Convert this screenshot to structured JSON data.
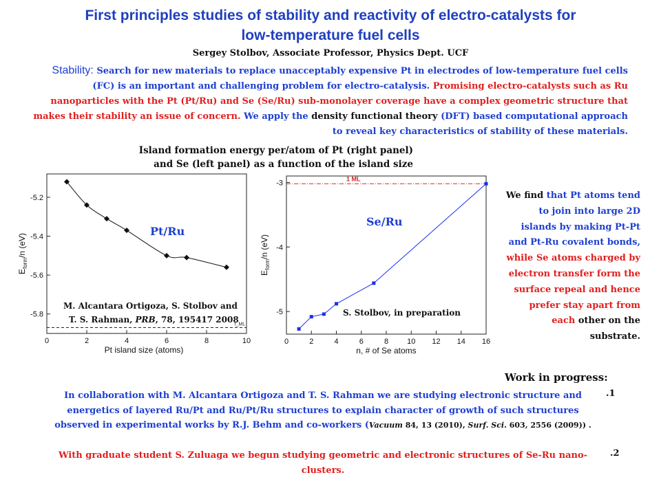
{
  "title": {
    "line1": "First principles studies of stability and reactivity of electro-catalysts for",
    "line2": "low-temperature fuel cells"
  },
  "author": "Sergey Stolbov, Associate Professor, Physics Dept. UCF",
  "stability": {
    "label": "Stability:",
    "part1": "Search for new materials to replace unacceptably expensive Pt in electrodes of low-temperature fuel cells (FC) is an important and challenging problem for electro-catalysis.",
    "part2": "Promising electro-catalysts such as Ru nanoparticles with the Pt (Pt/Ru) and Se (Se/Ru) sub-monolayer coverage have a complex geometric structure that makes their stability an issue of concern.",
    "part3a": "We apply the",
    "part3b": "density functional theory",
    "part3c": "(DFT) based computational approach to reveal key characteristics of stability of these materials."
  },
  "figure_caption": {
    "line1": "Island formation energy per/atom of Pt (right panel)",
    "line2": "and Se (left panel) as a function of the island size"
  },
  "findings": {
    "p1": "We find",
    "p2": "that Pt atoms tend to join into large 2D islands by making Pt-Pt and Pt-Ru covalent bonds,",
    "p3": "while Se atoms charged by electron transfer form the surface repeal and hence prefer stay apart from each",
    "p4": "other on the substrate."
  },
  "work_in_progress": {
    "heading": "Work in progress:",
    "item1_number": ".1",
    "item1_text": "In collaboration with M. Alcantara Ortigoza and T. S. Rahman we are studying electronic structure and energetics of layered Ru/Pt and Ru/Pt/Ru structures to explain character of growth of such structures  observed in experimental works by R.J. Behm and co-workers (",
    "item1_ref_a": "Vacuum",
    "item1_ref_b": " 84, 13 (2010), ",
    "item1_ref_c": "Surf. Sci.",
    "item1_ref_d": " 603, 2556 (2009))",
    "item1_end": " .",
    "item2_number": ".2",
    "item2_text": "With graduate student S. Zuluaga we begun studying geometric and electronic structures of Se-Ru nano-clusters."
  },
  "colors": {
    "title_blue": "#1f3fbf",
    "text_blue": "#1d3fd0",
    "text_red": "#e0201e",
    "series_blue": "#1a2ff0",
    "ml_line_red": "#e02020"
  },
  "chart_data": [
    {
      "type": "line",
      "panel_label": "Pt/Ru",
      "xlabel": "Pt island size (atoms)",
      "ylabel": "E_form/n (eV)",
      "ylabel_main": "E",
      "ylabel_sub": "form",
      "ylabel_rest": "/n (eV)",
      "xlim": [
        0,
        10
      ],
      "ylim": [
        -5.9,
        -5.08
      ],
      "xticks": [
        0,
        2,
        4,
        6,
        8,
        10
      ],
      "yticks": [
        -5.2,
        -5.4,
        -5.6,
        -5.8
      ],
      "x": [
        1,
        2,
        3,
        4,
        6,
        7,
        9
      ],
      "y": [
        -5.12,
        -5.24,
        -5.31,
        -5.37,
        -5.5,
        -5.51,
        -5.56
      ],
      "reference_label": "f_ML",
      "reference_value": -5.87,
      "citation_line1": "M. Alcantara Ortigoza, S. Stolbov and",
      "citation_line2_a": "T. S. Rahman,",
      "citation_line2_b": "PRB",
      "citation_line2_c": ", 78, 195417 2008"
    },
    {
      "type": "line",
      "panel_label": "Se/Ru",
      "xlabel": "n, # of Se atoms",
      "ylabel": "E_form/n (eV)",
      "ylabel_main": "E",
      "ylabel_sub": "form",
      "ylabel_rest": "/n (eV)",
      "xlim": [
        0,
        16
      ],
      "ylim": [
        -5.35,
        -2.9
      ],
      "xticks": [
        0,
        2,
        4,
        6,
        8,
        10,
        12,
        14,
        16
      ],
      "yticks": [
        -3,
        -4,
        -5
      ],
      "x": [
        1,
        2,
        3,
        4,
        7,
        16
      ],
      "y": [
        -5.27,
        -5.08,
        -5.04,
        -4.88,
        -4.56,
        -3.02
      ],
      "reference_label": "1 ML",
      "reference_value": -3.02,
      "citation": "S. Stolbov, in preparation"
    }
  ]
}
